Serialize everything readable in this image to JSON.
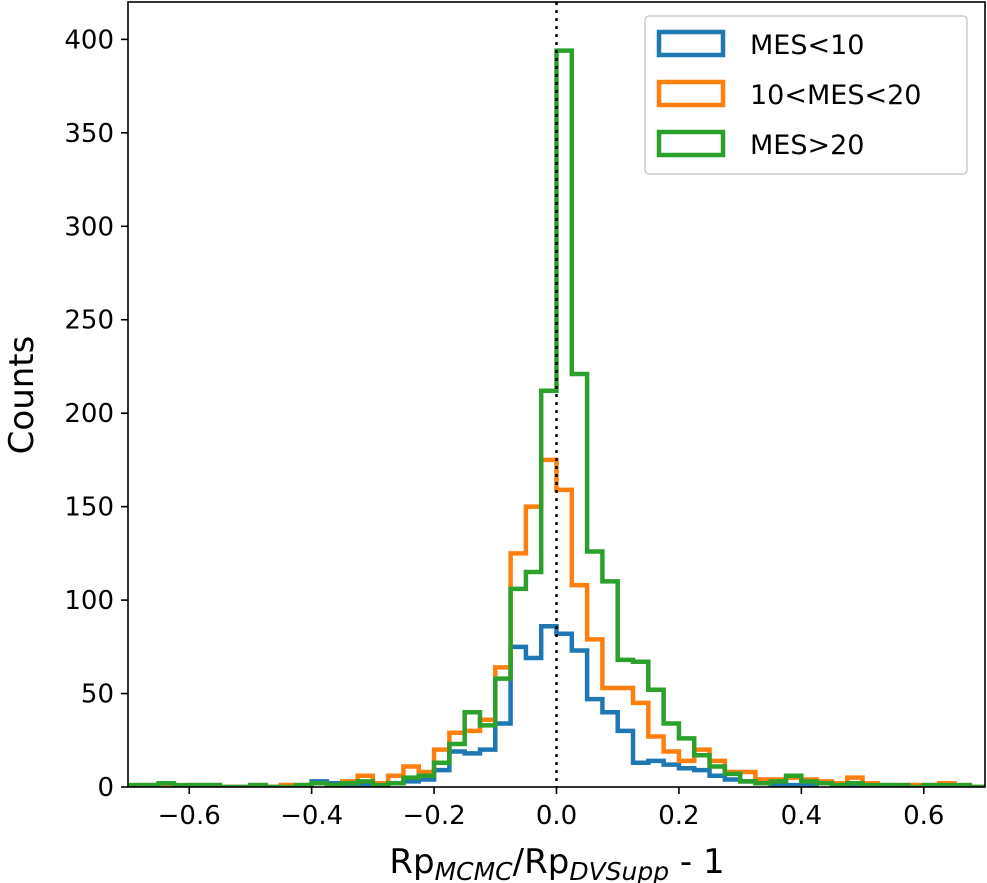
{
  "chart_data": {
    "type": "histogram",
    "xlabel": {
      "main": "Rp",
      "sub1": "MCMC",
      "mid": "/Rp",
      "sub2": "DVSupp",
      "tail": " - 1"
    },
    "ylabel": "Counts",
    "xlim": [
      -0.7,
      0.7
    ],
    "ylim": [
      0,
      420
    ],
    "x_ticks": [
      -0.6,
      -0.4,
      -0.2,
      0.0,
      0.2,
      0.4,
      0.6
    ],
    "x_tick_labels": [
      "−0.6",
      "−0.4",
      "−0.2",
      "0.0",
      "0.2",
      "0.4",
      "0.6"
    ],
    "y_ticks": [
      0,
      50,
      100,
      150,
      200,
      250,
      300,
      350,
      400
    ],
    "y_tick_labels": [
      "0",
      "50",
      "100",
      "150",
      "200",
      "250",
      "300",
      "350",
      "400"
    ],
    "reference_line": {
      "x": 0.0,
      "style": "dotted",
      "color": "#000000"
    },
    "bin_edges": [
      -0.7,
      -0.675,
      -0.65,
      -0.625,
      -0.6,
      -0.575,
      -0.55,
      -0.525,
      -0.5,
      -0.475,
      -0.45,
      -0.425,
      -0.4,
      -0.375,
      -0.35,
      -0.325,
      -0.3,
      -0.275,
      -0.25,
      -0.225,
      -0.2,
      -0.175,
      -0.15,
      -0.125,
      -0.1,
      -0.075,
      -0.05,
      -0.025,
      0.0,
      0.025,
      0.05,
      0.075,
      0.1,
      0.125,
      0.15,
      0.175,
      0.2,
      0.225,
      0.25,
      0.275,
      0.3,
      0.325,
      0.35,
      0.375,
      0.4,
      0.425,
      0.45,
      0.475,
      0.5,
      0.525,
      0.55,
      0.575,
      0.6,
      0.625,
      0.65,
      0.675,
      0.7
    ],
    "series": [
      {
        "name": "MES<10",
        "color": "#1f77b4",
        "counts": [
          0,
          1,
          1,
          0,
          1,
          1,
          0,
          0,
          1,
          0,
          1,
          1,
          3,
          2,
          1,
          1,
          1,
          2,
          3,
          4,
          9,
          19,
          18,
          20,
          34,
          75,
          69,
          86,
          82,
          73,
          47,
          40,
          30,
          13,
          14,
          12,
          10,
          9,
          6,
          4,
          3,
          2,
          1,
          1,
          1,
          2,
          2,
          1,
          1,
          1,
          0,
          1,
          1,
          1,
          0,
          0
        ]
      },
      {
        "name": "10<MES<20",
        "color": "#ff7f0e",
        "counts": [
          1,
          1,
          1,
          0,
          1,
          1,
          0,
          0,
          1,
          0,
          1,
          1,
          2,
          1,
          3,
          6,
          2,
          6,
          11,
          8,
          20,
          29,
          30,
          36,
          64,
          125,
          150,
          175,
          159,
          108,
          79,
          53,
          53,
          45,
          27,
          19,
          14,
          20,
          14,
          8,
          8,
          4,
          4,
          5,
          4,
          3,
          2,
          5,
          2,
          1,
          1,
          1,
          1,
          2,
          1,
          0
        ]
      },
      {
        "name": "MES>20",
        "color": "#2ca02c",
        "counts": [
          1,
          1,
          2,
          1,
          1,
          1,
          0,
          0,
          1,
          0,
          0,
          1,
          2,
          1,
          2,
          3,
          1,
          2,
          5,
          6,
          13,
          23,
          40,
          33,
          58,
          106,
          115,
          212,
          394,
          221,
          126,
          110,
          68,
          67,
          52,
          34,
          26,
          17,
          11,
          7,
          3,
          2,
          3,
          6,
          3,
          2,
          1,
          2,
          1,
          1,
          1,
          0,
          1,
          1,
          1,
          0
        ]
      }
    ]
  },
  "legend": {
    "items": [
      {
        "label": "MES<10",
        "color": "#1f77b4"
      },
      {
        "label": "10<MES<20",
        "color": "#ff7f0e"
      },
      {
        "label": "MES>20",
        "color": "#2ca02c"
      }
    ],
    "position": "upper right"
  }
}
